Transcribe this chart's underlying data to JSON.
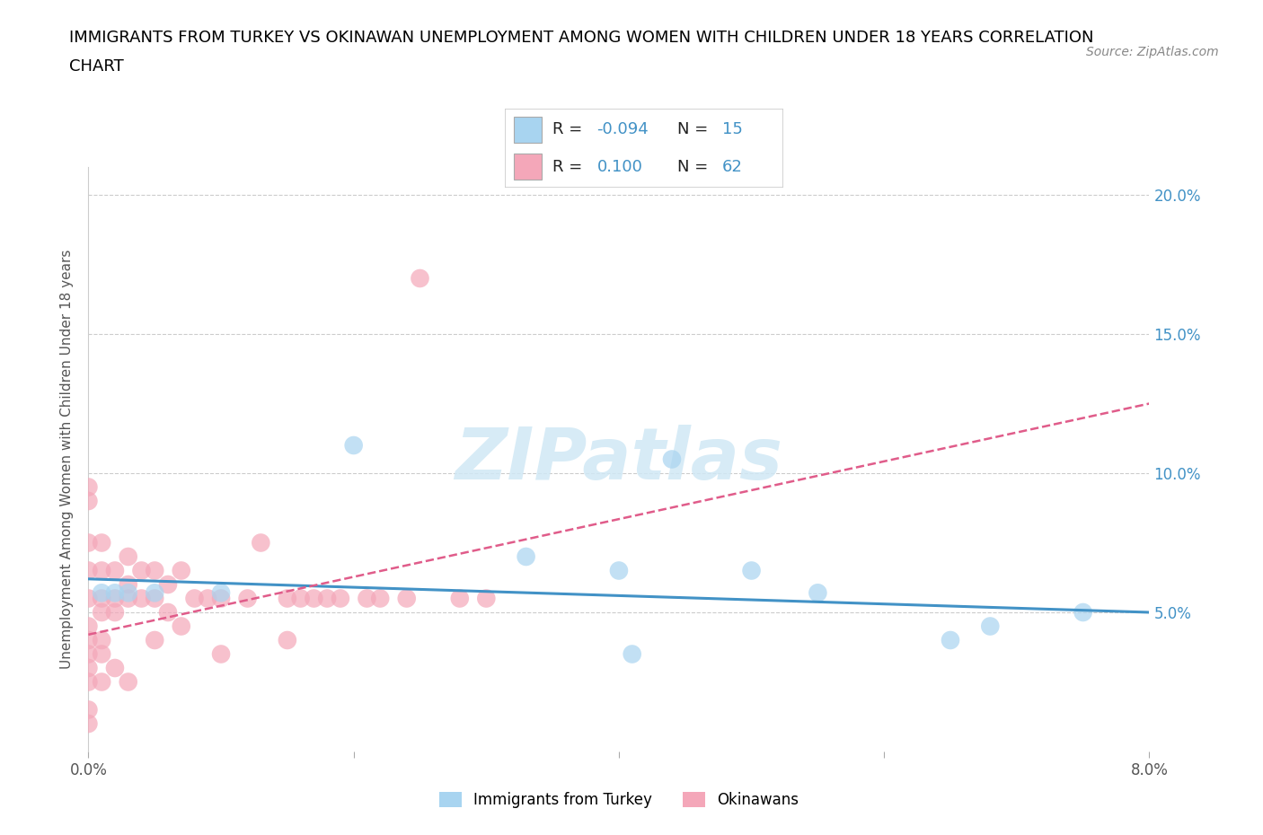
{
  "title_line1": "IMMIGRANTS FROM TURKEY VS OKINAWAN UNEMPLOYMENT AMONG WOMEN WITH CHILDREN UNDER 18 YEARS CORRELATION",
  "title_line2": "CHART",
  "source_text": "Source: ZipAtlas.com",
  "ylabel": "Unemployment Among Women with Children Under 18 years",
  "xlim": [
    0.0,
    0.08
  ],
  "ylim": [
    0.0,
    0.21
  ],
  "blue_color": "#a8d4f0",
  "pink_color": "#f4a7b9",
  "blue_line_color": "#4292c6",
  "pink_line_color": "#e05c8a",
  "grid_color": "#cccccc",
  "watermark_color": "#d0e8f5",
  "legend_label1": "Immigrants from Turkey",
  "legend_label2": "Okinawans",
  "blue_scatter_x": [
    0.001,
    0.002,
    0.003,
    0.005,
    0.01,
    0.02,
    0.033,
    0.04,
    0.041,
    0.044,
    0.05,
    0.055,
    0.065,
    0.068,
    0.075
  ],
  "blue_scatter_y": [
    0.057,
    0.057,
    0.057,
    0.057,
    0.057,
    0.11,
    0.07,
    0.065,
    0.035,
    0.105,
    0.065,
    0.057,
    0.04,
    0.045,
    0.05
  ],
  "pink_scatter_x": [
    0.0,
    0.0,
    0.0,
    0.0,
    0.0,
    0.0,
    0.0,
    0.0,
    0.0,
    0.0,
    0.0,
    0.0,
    0.001,
    0.001,
    0.001,
    0.001,
    0.001,
    0.001,
    0.001,
    0.002,
    0.002,
    0.002,
    0.002,
    0.003,
    0.003,
    0.003,
    0.003,
    0.004,
    0.004,
    0.005,
    0.005,
    0.005,
    0.006,
    0.006,
    0.007,
    0.007,
    0.008,
    0.009,
    0.01,
    0.01,
    0.012,
    0.013,
    0.015,
    0.015,
    0.016,
    0.017,
    0.018,
    0.019,
    0.021,
    0.022,
    0.024,
    0.025,
    0.028,
    0.03
  ],
  "pink_scatter_y": [
    0.095,
    0.09,
    0.075,
    0.065,
    0.055,
    0.045,
    0.04,
    0.035,
    0.03,
    0.025,
    0.015,
    0.01,
    0.075,
    0.065,
    0.055,
    0.05,
    0.04,
    0.035,
    0.025,
    0.065,
    0.055,
    0.05,
    0.03,
    0.07,
    0.06,
    0.055,
    0.025,
    0.065,
    0.055,
    0.065,
    0.055,
    0.04,
    0.06,
    0.05,
    0.065,
    0.045,
    0.055,
    0.055,
    0.055,
    0.035,
    0.055,
    0.075,
    0.055,
    0.04,
    0.055,
    0.055,
    0.055,
    0.055,
    0.055,
    0.055,
    0.055,
    0.17,
    0.055,
    0.055
  ],
  "blue_trend_x": [
    0.0,
    0.08
  ],
  "blue_trend_y": [
    0.062,
    0.05
  ],
  "pink_trend_x": [
    0.0,
    0.08
  ],
  "pink_trend_y": [
    0.042,
    0.125
  ]
}
